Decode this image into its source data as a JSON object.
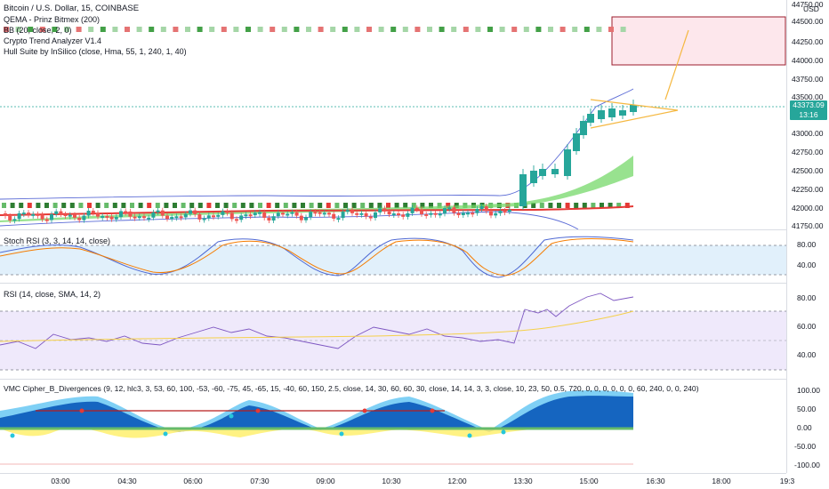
{
  "header": {
    "symbol_line": "Bitcoin / U.S. Dollar, 15, COINBASE",
    "indicators": [
      "QEMA - Prinz Bitmex (200)",
      "BB (20, close, 2, 0)",
      "Crypto Trend Analyzer V1.4",
      "Hull Suite by InSilico (close, Hma, 55, 1, 240, 1, 40)"
    ]
  },
  "price_axis": {
    "currency": "USD",
    "ticks": [
      "44750.00",
      "44500.00",
      "44250.00",
      "44000.00",
      "43750.00",
      "43500.00",
      "43250.00",
      "43000.00",
      "42750.00",
      "42500.00",
      "42250.00",
      "42000.00",
      "41750.00"
    ],
    "last_price": "43373.09",
    "countdown": "13:16"
  },
  "stoch": {
    "title": "Stoch RSI (3, 3, 14, 14, close)",
    "ticks": [
      "80.00",
      "40.00"
    ]
  },
  "rsi": {
    "title": "RSI (14, close, SMA, 14, 2)",
    "ticks": [
      "80.00",
      "60.00",
      "40.00"
    ]
  },
  "vmc": {
    "title": "VMC Cipher_B_Divergences (9, 12, hlc3, 3, 53, 60, 100, -53, -60, -75, 45, -65, 15, -40, 60, 150, 2.5, close, 14, 30, 60, 60, 30, close, 14, 14, 3, 3, close, 10, 23, 50, 0.5, 720, 0, 0, 0, 0, 0, 0, 60, 240, 0, 0, 240)",
    "ticks": [
      "100.00",
      "50.00",
      "0.00",
      "-50.00",
      "-100.00"
    ]
  },
  "time_axis": [
    "03:00",
    "04:30",
    "06:00",
    "07:30",
    "09:00",
    "10:30",
    "12:00",
    "13:30",
    "15:00",
    "16:30",
    "18:00",
    "19:3"
  ],
  "colors": {
    "up": "#26a69a",
    "down": "#ef5350",
    "signal_green": "#2e7d32",
    "signal_red": "#c62828",
    "trend": "#f5b841",
    "bb": "#5b6bd6"
  }
}
